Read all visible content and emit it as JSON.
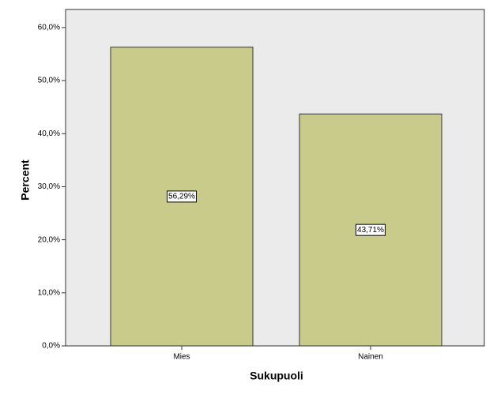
{
  "chart_data": {
    "type": "bar",
    "x_label": "Sukupuoli",
    "y_label": "Percent",
    "categories": [
      "Mies",
      "Nainen"
    ],
    "values": [
      56.29,
      43.71
    ],
    "value_labels": [
      "56,29%",
      "43,71%"
    ],
    "color": "#c8cb8a",
    "ylim": [
      0,
      63.4
    ],
    "yticks": [
      {
        "value": 0,
        "label": "0,0%"
      },
      {
        "value": 10,
        "label": "10,0%"
      },
      {
        "value": 20,
        "label": "20,0%"
      },
      {
        "value": 30,
        "label": "30,0%"
      },
      {
        "value": 40,
        "label": "40,0%"
      },
      {
        "value": 50,
        "label": "50,0%"
      },
      {
        "value": 60,
        "label": "60,0%"
      }
    ]
  }
}
